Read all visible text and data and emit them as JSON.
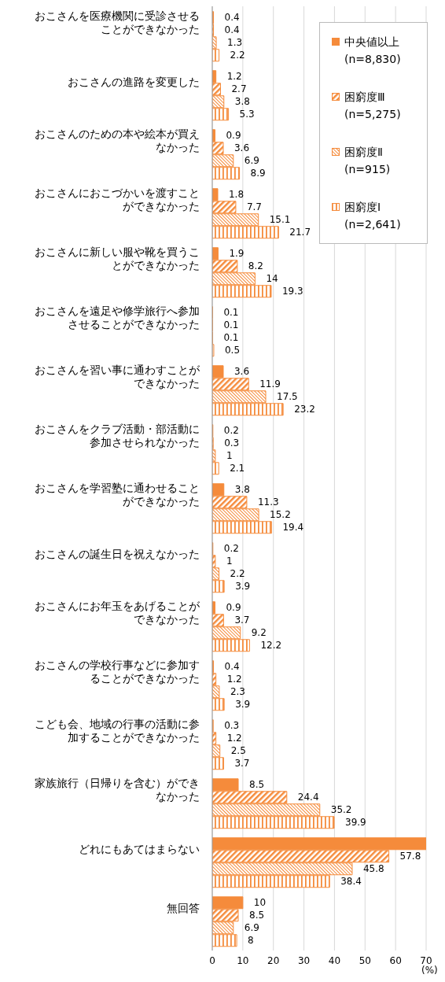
{
  "chart_data": {
    "type": "bar",
    "orientation": "horizontal",
    "xlabel": "(%)",
    "categories": [
      "おこさんを医療機関に受診させることができなかった",
      "おこさんの進路を変更した",
      "おこさんのための本や絵本が買えなかった",
      "おこさんにおこづかいを渡すことができなかった",
      "おこさんに新しい服や靴を買うことができなかった",
      "おこさんを遠足や修学旅行へ参加させることができなかった",
      "おこさんを習い事に通わすことができなかった",
      "おこさんをクラブ活動・部活動に参加させられなかった",
      "おこさんを学習塾に通わせることができなかった",
      "おこさんの誕生日を祝えなかった",
      "おこさんにお年玉をあげることができなかった",
      "おこさんの学校行事などに参加することができなかった",
      "こども会、地域の行事の活動に参加することができなかった",
      "家族旅行（日帰りを含む）ができなかった",
      "どれにもあてはまらない",
      "無回答"
    ],
    "series": [
      {
        "name": "中央値以上\n(n=8,830)",
        "color": "#f58b3b",
        "values": [
          0.4,
          1.2,
          0.9,
          1.8,
          1.9,
          0.1,
          3.6,
          0.2,
          3.8,
          0.2,
          0.9,
          0.4,
          0.3,
          8.5,
          70,
          10
        ],
        "value_labels": [
          "0.4",
          "1.2",
          "0.9",
          "1.8",
          "1.9",
          "0.1",
          "3.6",
          "0.2",
          "3.8",
          "0.2",
          "0.9",
          "0.4",
          "0.3",
          "8.5",
          null,
          "10"
        ]
      },
      {
        "name": "困窮度Ⅲ\n(n=5,275)",
        "color": "#f58b3b",
        "values": [
          0.4,
          2.7,
          3.6,
          7.7,
          8.2,
          0.1,
          11.9,
          0.3,
          11.3,
          1,
          3.7,
          1.2,
          1.2,
          24.4,
          57.8,
          8.5
        ],
        "value_labels": [
          "0.4",
          "2.7",
          "3.6",
          "7.7",
          "8.2",
          "0.1",
          "11.9",
          "0.3",
          "11.3",
          "1",
          "3.7",
          "1.2",
          "1.2",
          "24.4",
          "57.8",
          "8.5"
        ]
      },
      {
        "name": "困窮度Ⅱ\n(n=915)",
        "color": "#f58b3b",
        "values": [
          1.3,
          3.8,
          6.9,
          15.1,
          14,
          0.1,
          17.5,
          1,
          15.2,
          2.2,
          9.2,
          2.3,
          2.5,
          35.2,
          45.8,
          6.9
        ],
        "value_labels": [
          "1.3",
          "3.8",
          "6.9",
          "15.1",
          "14",
          "0.1",
          "17.5",
          "1",
          "15.2",
          "2.2",
          "9.2",
          "2.3",
          "2.5",
          "35.2",
          "45.8",
          "6.9"
        ]
      },
      {
        "name": "困窮度Ⅰ\n(n=2,641)",
        "color": "#f58b3b",
        "values": [
          2.2,
          5.3,
          8.9,
          21.7,
          19.3,
          0.5,
          23.2,
          2.1,
          19.4,
          3.9,
          12.2,
          3.9,
          3.7,
          39.9,
          38.4,
          8
        ],
        "value_labels": [
          "2.2",
          "5.3",
          "8.9",
          "21.7",
          "19.3",
          "0.5",
          "23.2",
          "2.1",
          "19.4",
          "3.9",
          "12.2",
          "3.9",
          "3.7",
          "39.9",
          "38.4",
          "8"
        ]
      }
    ],
    "xlim": [
      0,
      70
    ],
    "xticks": [
      0,
      10,
      20,
      30,
      40,
      50,
      60,
      70
    ],
    "grid": "x",
    "legend": "top right"
  }
}
